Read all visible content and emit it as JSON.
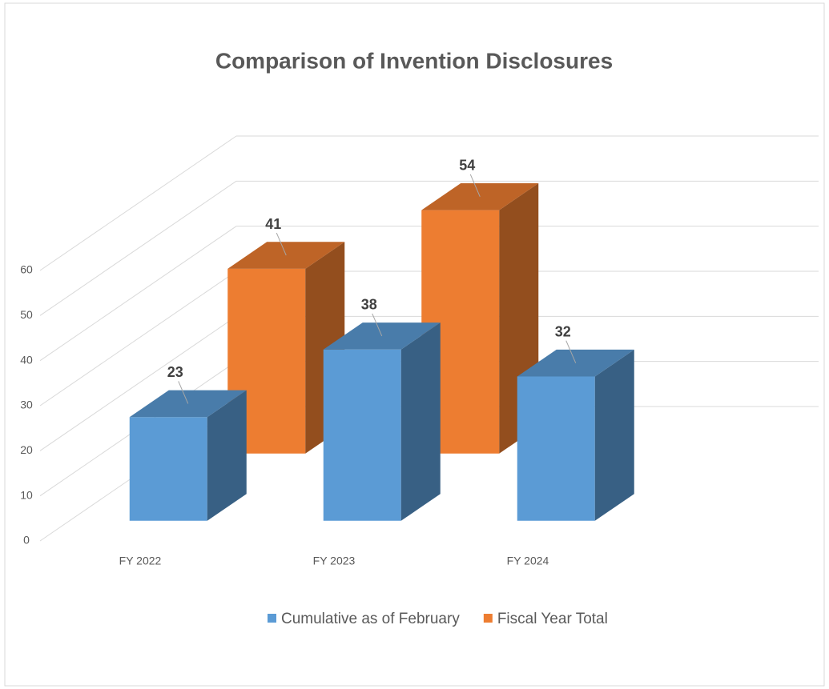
{
  "chart_data": {
    "type": "bar3d",
    "title": "Comparison of Invention Disclosures",
    "categories": [
      "FY 2022",
      "FY 2023",
      "FY 2024"
    ],
    "series": [
      {
        "name": "Cumulative as of February",
        "color": "#5b9bd5",
        "values": [
          23,
          38,
          32
        ]
      },
      {
        "name": "Fiscal Year Total",
        "color": "#ed7d31",
        "values": [
          41,
          54,
          null
        ]
      }
    ],
    "ylim": [
      0,
      60
    ],
    "yticks": [
      0,
      10,
      20,
      30,
      40,
      50,
      60
    ],
    "grid": true,
    "legend": "bottom"
  }
}
